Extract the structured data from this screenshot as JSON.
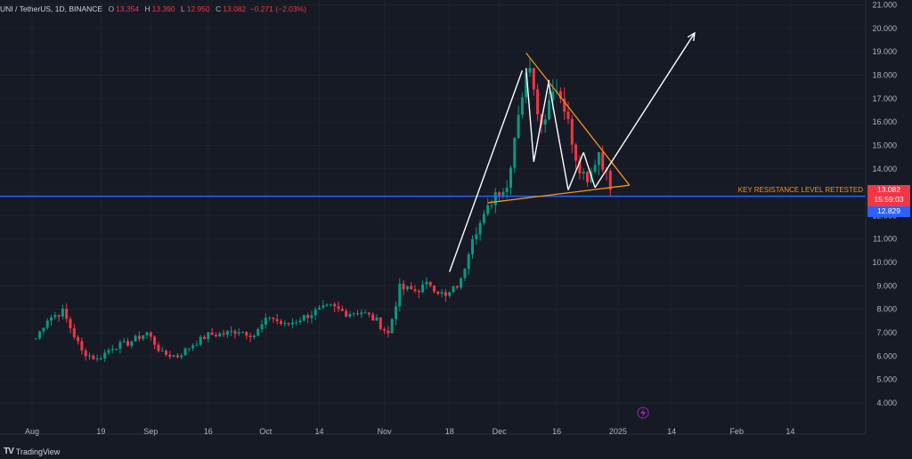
{
  "legend": {
    "symbol": "UNI / TetherUS, 1D, BINANCE",
    "open_label": "O",
    "open": "13.354",
    "high_label": "H",
    "high": "13.390",
    "low_label": "L",
    "low": "12.950",
    "close_label": "C",
    "close": "13.082",
    "change": "−0.271 (−2.03%)"
  },
  "annotation": "KEY RESISTANCE LEVEL RETESTED",
  "price_tags": {
    "last_price": "13.082",
    "countdown": "15:59:03",
    "level_price": "12.829"
  },
  "brand": "TradingView",
  "colors": {
    "background": "#161a25",
    "up": "#089981",
    "down": "#f23645",
    "resistance_line": "#2962ff",
    "triangle": "#f7931a",
    "arrows": "#ffffff"
  },
  "chart_data": {
    "type": "candlestick",
    "ylim": [
      3.5,
      21.2
    ],
    "y_ticks": [
      "4.000",
      "5.000",
      "6.000",
      "7.000",
      "8.000",
      "9.000",
      "10.000",
      "11.000",
      "12.000",
      "13.000",
      "14.000",
      "15.000",
      "16.000",
      "17.000",
      "18.000",
      "19.000",
      "20.000",
      "21.000"
    ],
    "x_ticks": [
      "Aug",
      "19",
      "Sep",
      "16",
      "Oct",
      "14",
      "Nov",
      "18",
      "Dec",
      "16",
      "2025",
      "14",
      "Feb",
      "14"
    ],
    "x_tick_days": [
      0,
      18,
      31,
      46,
      61,
      75,
      92,
      109,
      122,
      137,
      153,
      167,
      184,
      198
    ],
    "resistance_level": 12.829,
    "triangle": {
      "top": [
        [
          1,
          6.76
        ],
        [
          4,
          7.6
        ],
        [
          8,
          7.9
        ],
        [
          13,
          6.2
        ],
        [
          17,
          5.85
        ],
        [
          21,
          6.4
        ],
        [
          25,
          6.55
        ],
        [
          30,
          7.0
        ],
        [
          34,
          6.1
        ],
        [
          38,
          6.0
        ],
        [
          42,
          6.5
        ],
        [
          46,
          6.9
        ],
        [
          50,
          6.95
        ],
        [
          54,
          7.1
        ],
        [
          58,
          6.9
        ],
        [
          62,
          7.7
        ],
        [
          66,
          7.3
        ],
        [
          70,
          7.6
        ],
        [
          74,
          7.9
        ],
        [
          78,
          8.1
        ],
        [
          82,
          7.85
        ],
        [
          86,
          7.9
        ],
        [
          90,
          7.5
        ],
        [
          93,
          6.95
        ],
        [
          96,
          8.9
        ],
        [
          100,
          8.8
        ],
        [
          104,
          9.1
        ],
        [
          108,
          8.5
        ],
        [
          112,
          9.2
        ],
        [
          115,
          11.2
        ],
        [
          118,
          11.9
        ],
        [
          121,
          13.0
        ],
        [
          124,
          13.2
        ],
        [
          127,
          16.5
        ],
        [
          130,
          18.6
        ],
        [
          133,
          15.8
        ],
        [
          136,
          17.6
        ],
        [
          139,
          16.8
        ],
        [
          142,
          14.2
        ],
        [
          145,
          13.3
        ],
        [
          148,
          14.8
        ],
        [
          151,
          13.1
        ]
      ],
      "apex_day": 156,
      "apex_price": 13.3,
      "upper_start_day": 129,
      "upper_start_price": 18.95,
      "lower_start_day": 119,
      "lower_start_price": 12.55
    },
    "arrows": [
      {
        "from": [
          109,
          9.6
        ],
        "to": [
          128,
          18.2
        ]
      },
      {
        "from": [
          129,
          18.3
        ],
        "to": [
          131,
          14.3
        ]
      },
      {
        "from": [
          131,
          14.3
        ],
        "to": [
          135,
          17.8
        ]
      },
      {
        "from": [
          135,
          17.6
        ],
        "to": [
          140,
          13.1
        ]
      },
      {
        "from": [
          140,
          13.1
        ],
        "to": [
          144,
          14.7
        ]
      },
      {
        "from": [
          144,
          14.7
        ],
        "to": [
          147,
          13.2
        ]
      },
      {
        "from": [
          147,
          13.2
        ],
        "to": [
          173,
          19.8
        ]
      }
    ]
  }
}
